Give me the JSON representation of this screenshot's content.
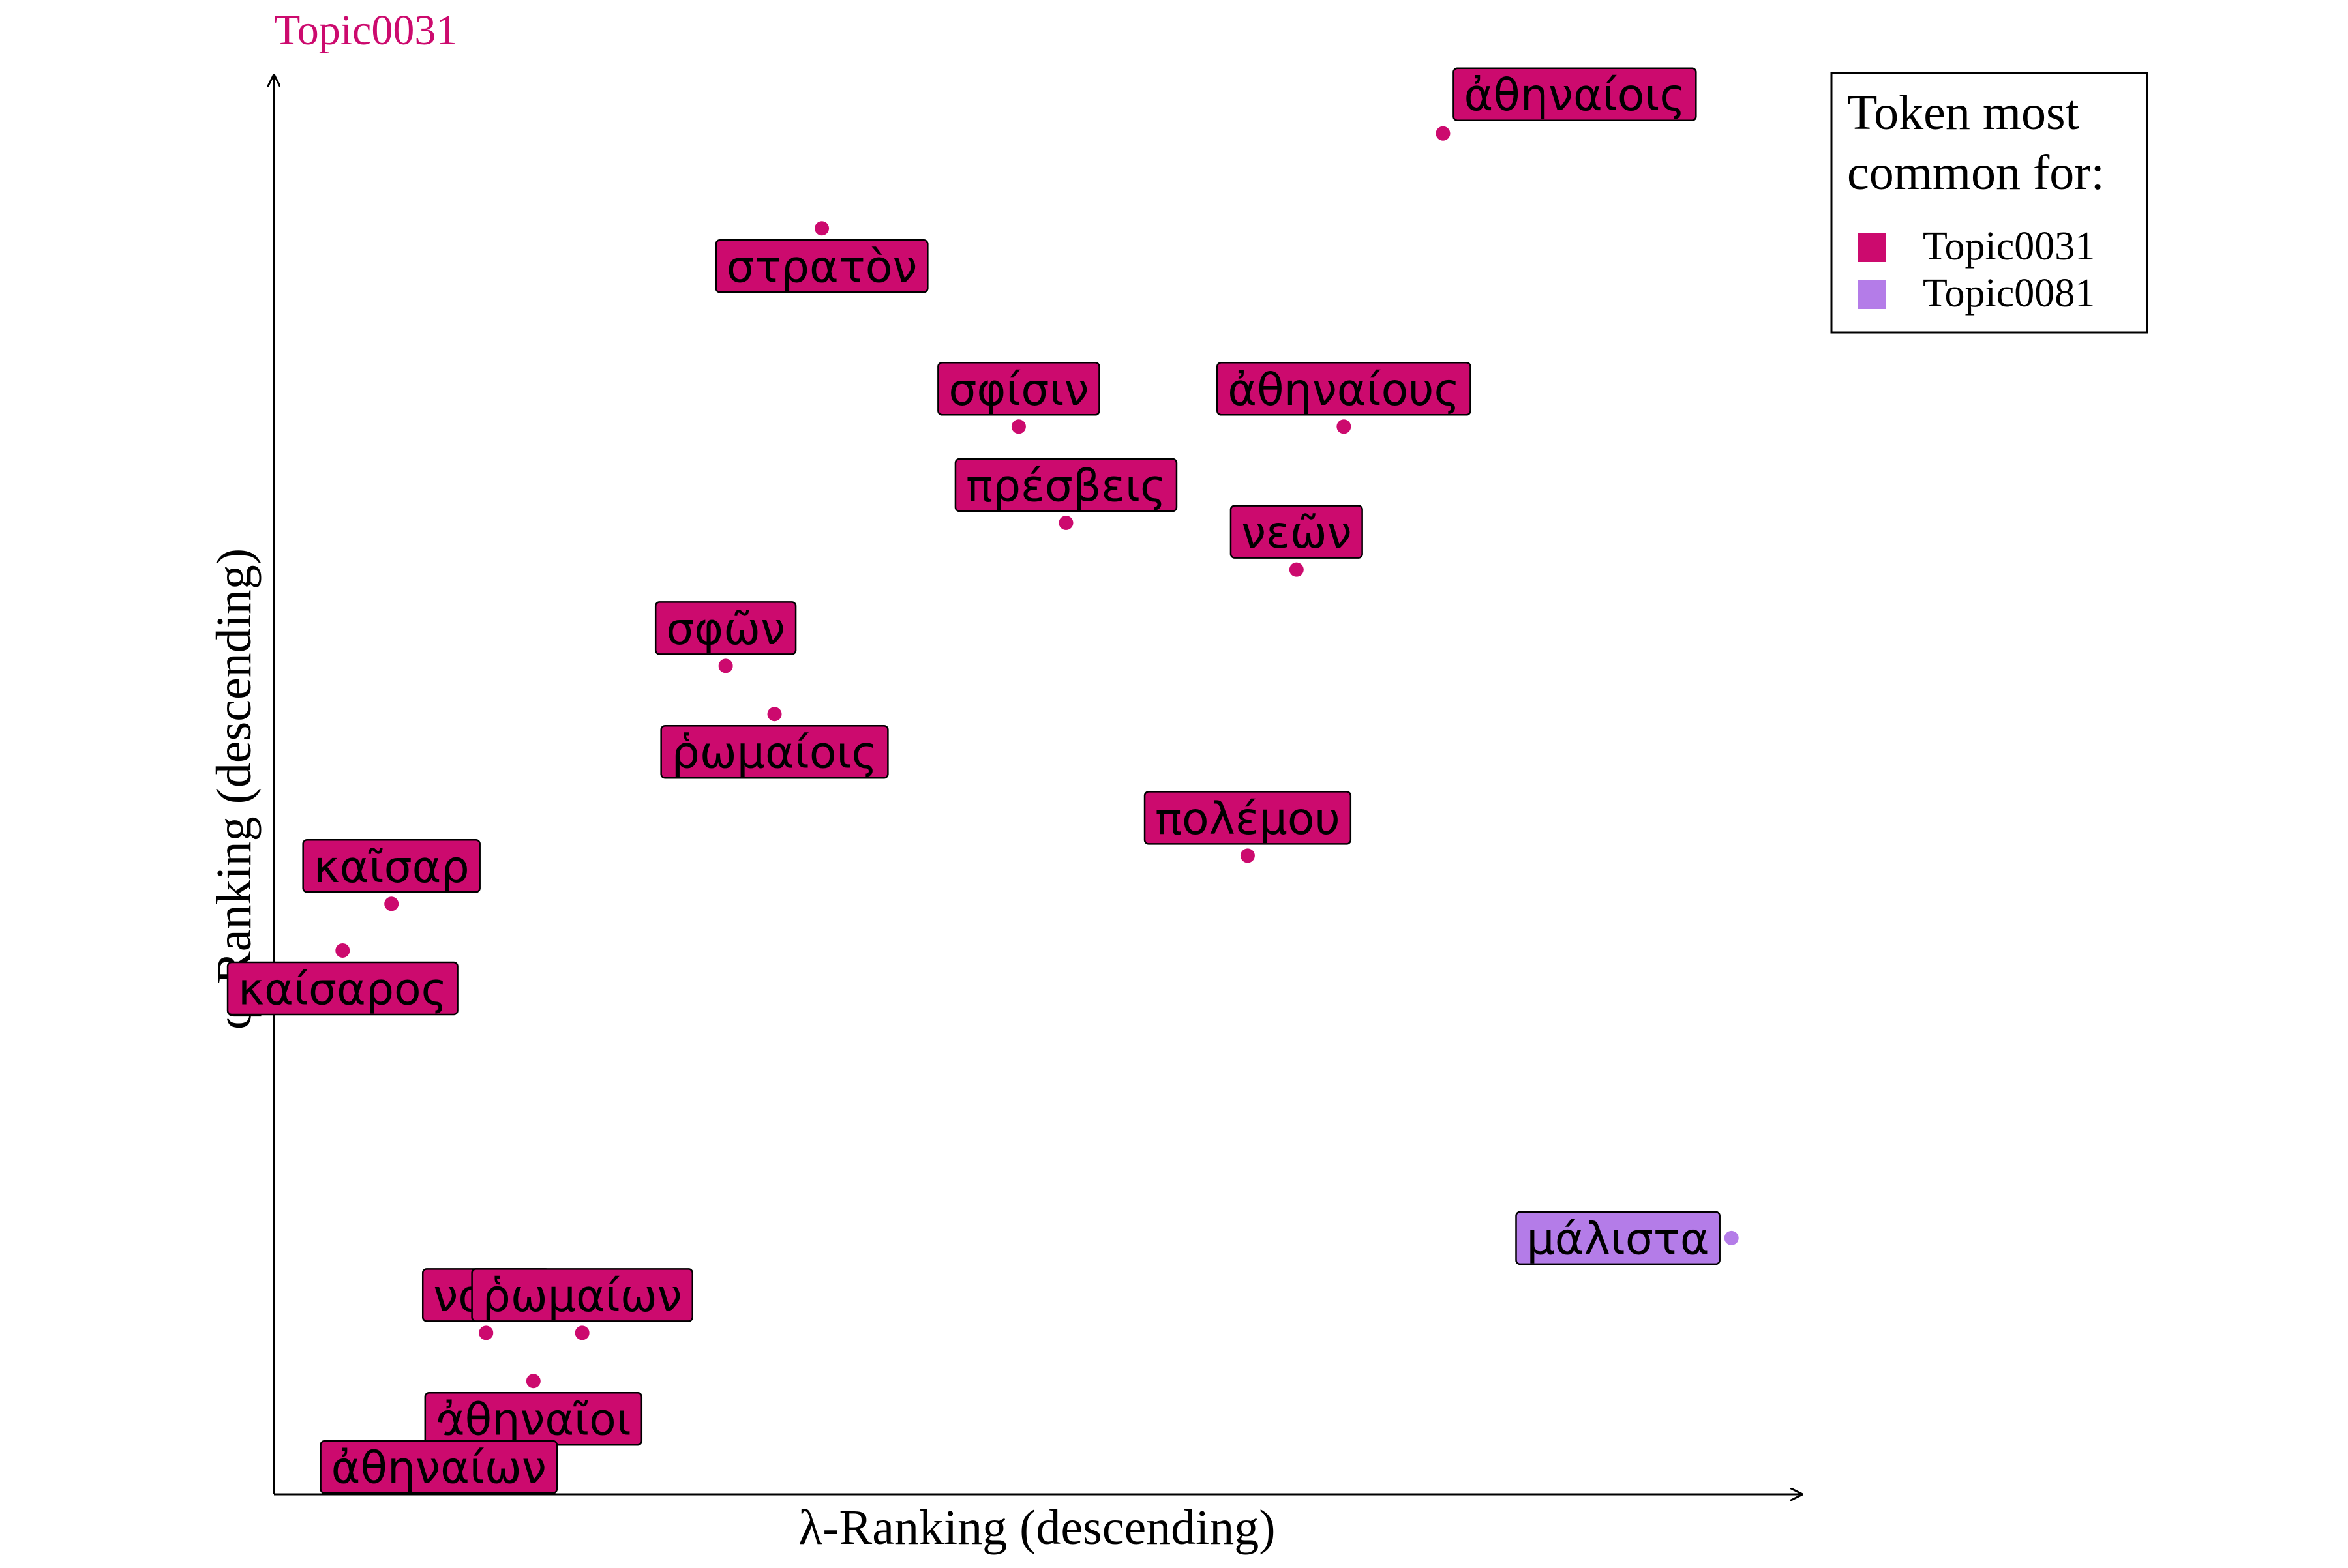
{
  "chart_data": {
    "type": "scatter",
    "title": "Topic0031",
    "xlabel": "λ-Ranking (descending)",
    "ylabel": "φ-Ranking (descending)",
    "xlim": [
      0,
      100
    ],
    "ylim": [
      0,
      100
    ],
    "grid": false,
    "legend": {
      "title_lines": [
        "Token most",
        "common for:"
      ],
      "placement": "top-right",
      "entries": [
        {
          "name": "Topic0031",
          "color": "#CC0A6E"
        },
        {
          "name": "Topic0081",
          "color": "#B47CE8"
        }
      ]
    },
    "colors": {
      "Topic0031": "#CC0A6E",
      "Topic0081": "#B47CE8",
      "title": "#CC0A6E"
    },
    "points": [
      {
        "token": "ἀθηναίοις",
        "x": 76.6,
        "y": 96.1,
        "topic": "Topic0031",
        "label_side": "above-right"
      },
      {
        "token": "στρατὸν",
        "x": 35.9,
        "y": 89.4,
        "topic": "Topic0031",
        "label_side": "below"
      },
      {
        "token": "σφίσιν",
        "x": 48.8,
        "y": 75.4,
        "topic": "Topic0031",
        "label_side": "above"
      },
      {
        "token": "ἀθηναίους",
        "x": 70.1,
        "y": 75.4,
        "topic": "Topic0031",
        "label_side": "above"
      },
      {
        "token": "πρέσβεις",
        "x": 51.9,
        "y": 68.6,
        "topic": "Topic0031",
        "label_side": "above"
      },
      {
        "token": "νεῶν",
        "x": 67.0,
        "y": 65.3,
        "topic": "Topic0031",
        "label_side": "above"
      },
      {
        "token": "σφῶν",
        "x": 29.6,
        "y": 58.5,
        "topic": "Topic0031",
        "label_side": "above"
      },
      {
        "token": "ῥωμαίοις",
        "x": 32.8,
        "y": 55.1,
        "topic": "Topic0031",
        "label_side": "below"
      },
      {
        "token": "πολέμου",
        "x": 63.8,
        "y": 45.1,
        "topic": "Topic0031",
        "label_side": "above"
      },
      {
        "token": "καῖσαρ",
        "x": 7.7,
        "y": 41.7,
        "topic": "Topic0031",
        "label_side": "above"
      },
      {
        "token": "καίσαρος",
        "x": 4.5,
        "y": 38.4,
        "topic": "Topic0031",
        "label_side": "below"
      },
      {
        "token": "μάλιστα",
        "x": 95.5,
        "y": 18.1,
        "topic": "Topic0081",
        "label_side": "left"
      },
      {
        "token": "ναῦς",
        "x": 13.9,
        "y": 11.4,
        "topic": "Topic0031",
        "label_side": "above"
      },
      {
        "token": "ῥωμαίων",
        "x": 20.2,
        "y": 11.4,
        "topic": "Topic0031",
        "label_side": "above"
      },
      {
        "token": "ἀθηναῖοι",
        "x": 17.0,
        "y": 8.0,
        "topic": "Topic0031",
        "label_side": "below"
      },
      {
        "token": "ἀθηναίων",
        "x": 10.8,
        "y": 4.6,
        "topic": "Topic0031",
        "label_side": "below"
      }
    ]
  }
}
